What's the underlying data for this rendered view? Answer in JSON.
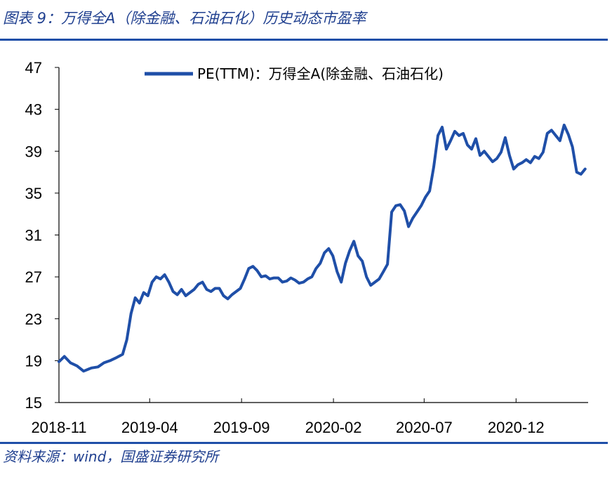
{
  "header": {
    "title": "图表 9：万得全A（除金融、石油石化）历史动态市盈率"
  },
  "footer": {
    "source": "资料来源：wind，国盛证券研究所"
  },
  "colors": {
    "series": "#1f4fa8",
    "rule": "#1f4fa8",
    "title": "#1f3f8f"
  },
  "chart_data": {
    "type": "line",
    "title": "",
    "xlabel": "",
    "ylabel": "",
    "ylim": [
      15,
      47
    ],
    "yticks": [
      "47",
      "43",
      "39",
      "35",
      "31",
      "27",
      "23",
      "19",
      "15"
    ],
    "xticks": [
      "2018-11",
      "2019-04",
      "2019-09",
      "2020-02",
      "2020-07",
      "2020-12"
    ],
    "xlim": [
      "2018-11-01",
      "2021-03-31"
    ],
    "grid": false,
    "legend_position": "top-center",
    "series": [
      {
        "name": "PE(TTM)：万得全A(除金融、石油石化)",
        "points": [
          [
            "2018-11-01",
            18.9
          ],
          [
            "2018-11-10",
            19.4
          ],
          [
            "2018-11-20",
            18.8
          ],
          [
            "2018-12-01",
            18.5
          ],
          [
            "2018-12-12",
            18.0
          ],
          [
            "2018-12-25",
            18.3
          ],
          [
            "2019-01-05",
            18.4
          ],
          [
            "2019-01-15",
            18.8
          ],
          [
            "2019-01-25",
            19.0
          ],
          [
            "2019-02-05",
            19.3
          ],
          [
            "2019-02-15",
            19.6
          ],
          [
            "2019-02-22",
            21.0
          ],
          [
            "2019-03-01",
            23.5
          ],
          [
            "2019-03-08",
            25.0
          ],
          [
            "2019-03-15",
            24.5
          ],
          [
            "2019-03-22",
            25.5
          ],
          [
            "2019-03-29",
            25.2
          ],
          [
            "2019-04-05",
            26.5
          ],
          [
            "2019-04-12",
            27.0
          ],
          [
            "2019-04-19",
            26.8
          ],
          [
            "2019-04-26",
            27.2
          ],
          [
            "2019-05-03",
            26.5
          ],
          [
            "2019-05-10",
            25.6
          ],
          [
            "2019-05-17",
            25.3
          ],
          [
            "2019-05-24",
            25.8
          ],
          [
            "2019-05-31",
            25.2
          ],
          [
            "2019-06-07",
            25.5
          ],
          [
            "2019-06-14",
            25.8
          ],
          [
            "2019-06-21",
            26.3
          ],
          [
            "2019-06-28",
            26.5
          ],
          [
            "2019-07-05",
            25.8
          ],
          [
            "2019-07-12",
            25.6
          ],
          [
            "2019-07-19",
            25.9
          ],
          [
            "2019-07-26",
            25.9
          ],
          [
            "2019-08-02",
            25.2
          ],
          [
            "2019-08-09",
            24.9
          ],
          [
            "2019-08-16",
            25.3
          ],
          [
            "2019-08-23",
            25.6
          ],
          [
            "2019-08-30",
            25.9
          ],
          [
            "2019-09-06",
            26.8
          ],
          [
            "2019-09-13",
            27.8
          ],
          [
            "2019-09-20",
            28.0
          ],
          [
            "2019-09-27",
            27.6
          ],
          [
            "2019-10-04",
            27.0
          ],
          [
            "2019-10-11",
            27.1
          ],
          [
            "2019-10-18",
            26.8
          ],
          [
            "2019-10-25",
            26.9
          ],
          [
            "2019-11-01",
            26.9
          ],
          [
            "2019-11-08",
            26.5
          ],
          [
            "2019-11-15",
            26.6
          ],
          [
            "2019-11-22",
            26.9
          ],
          [
            "2019-11-29",
            26.7
          ],
          [
            "2019-12-06",
            26.4
          ],
          [
            "2019-12-13",
            26.5
          ],
          [
            "2019-12-20",
            26.8
          ],
          [
            "2019-12-27",
            27.0
          ],
          [
            "2020-01-03",
            27.8
          ],
          [
            "2020-01-10",
            28.3
          ],
          [
            "2020-01-17",
            29.3
          ],
          [
            "2020-01-24",
            29.7
          ],
          [
            "2020-01-31",
            29.0
          ],
          [
            "2020-02-07",
            27.5
          ],
          [
            "2020-02-14",
            26.5
          ],
          [
            "2020-02-21",
            28.3
          ],
          [
            "2020-02-28",
            29.5
          ],
          [
            "2020-03-06",
            30.4
          ],
          [
            "2020-03-13",
            29.0
          ],
          [
            "2020-03-20",
            28.5
          ],
          [
            "2020-03-27",
            27.0
          ],
          [
            "2020-04-03",
            26.2
          ],
          [
            "2020-04-10",
            26.5
          ],
          [
            "2020-04-17",
            26.8
          ],
          [
            "2020-04-24",
            27.5
          ],
          [
            "2020-05-01",
            28.2
          ],
          [
            "2020-05-08",
            33.2
          ],
          [
            "2020-05-15",
            33.8
          ],
          [
            "2020-05-22",
            33.9
          ],
          [
            "2020-05-29",
            33.3
          ],
          [
            "2020-06-05",
            31.8
          ],
          [
            "2020-06-12",
            32.6
          ],
          [
            "2020-06-19",
            33.2
          ],
          [
            "2020-06-26",
            33.8
          ],
          [
            "2020-07-03",
            34.6
          ],
          [
            "2020-07-10",
            35.2
          ],
          [
            "2020-07-17",
            37.5
          ],
          [
            "2020-07-24",
            40.5
          ],
          [
            "2020-07-31",
            41.3
          ],
          [
            "2020-08-07",
            39.2
          ],
          [
            "2020-08-14",
            40.0
          ],
          [
            "2020-08-21",
            40.9
          ],
          [
            "2020-08-28",
            40.5
          ],
          [
            "2020-09-04",
            40.7
          ],
          [
            "2020-09-11",
            39.6
          ],
          [
            "2020-09-18",
            39.2
          ],
          [
            "2020-09-25",
            40.2
          ],
          [
            "2020-10-02",
            38.6
          ],
          [
            "2020-10-09",
            39.0
          ],
          [
            "2020-10-16",
            38.5
          ],
          [
            "2020-10-23",
            38.0
          ],
          [
            "2020-10-30",
            38.3
          ],
          [
            "2020-11-06",
            38.9
          ],
          [
            "2020-11-13",
            40.3
          ],
          [
            "2020-11-20",
            38.6
          ],
          [
            "2020-11-27",
            37.3
          ],
          [
            "2020-12-04",
            37.7
          ],
          [
            "2020-12-11",
            37.9
          ],
          [
            "2020-12-18",
            38.2
          ],
          [
            "2020-12-25",
            37.9
          ],
          [
            "2021-01-01",
            38.5
          ],
          [
            "2021-01-08",
            38.3
          ],
          [
            "2021-01-15",
            38.9
          ],
          [
            "2021-01-22",
            40.7
          ],
          [
            "2021-01-29",
            41.0
          ],
          [
            "2021-02-05",
            40.5
          ],
          [
            "2021-02-12",
            40.0
          ],
          [
            "2021-02-19",
            41.5
          ],
          [
            "2021-02-26",
            40.6
          ],
          [
            "2021-03-05",
            39.4
          ],
          [
            "2021-03-12",
            37.0
          ],
          [
            "2021-03-19",
            36.8
          ],
          [
            "2021-03-26",
            37.3
          ]
        ]
      }
    ]
  }
}
